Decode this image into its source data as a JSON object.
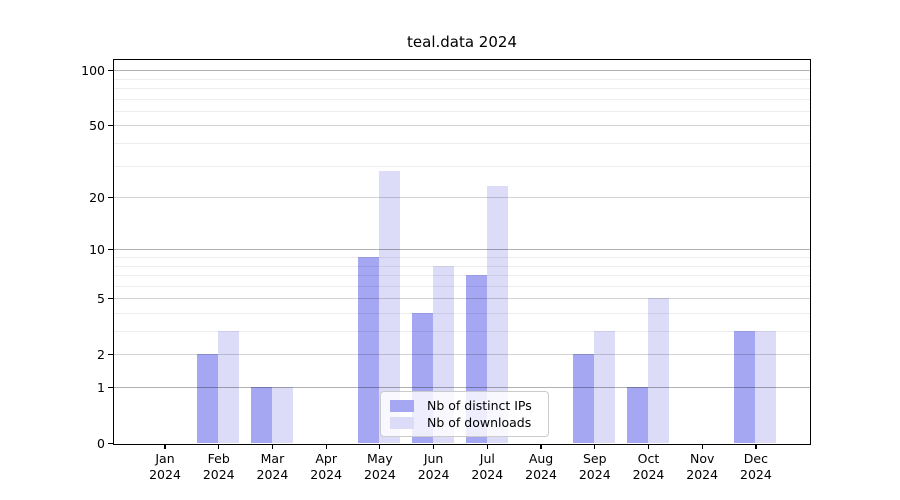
{
  "chart_data": {
    "type": "bar",
    "title": "teal.data 2024",
    "categories": [
      "Jan\n2024",
      "Feb\n2024",
      "Mar\n2024",
      "Apr\n2024",
      "May\n2024",
      "Jun\n2024",
      "Jul\n2024",
      "Aug\n2024",
      "Sep\n2024",
      "Oct\n2024",
      "Nov\n2024",
      "Dec\n2024"
    ],
    "series": [
      {
        "name": "Nb of distinct IPs",
        "color": "#a5a7f2",
        "values": [
          0,
          2,
          1,
          0,
          9,
          4,
          7,
          0,
          2,
          1,
          0,
          3
        ]
      },
      {
        "name": "Nb of downloads",
        "color": "#dcdcf8",
        "values": [
          0,
          3,
          1,
          0,
          28,
          8,
          23,
          0,
          3,
          5,
          0,
          3
        ]
      }
    ],
    "xlabel": "",
    "ylabel": "",
    "yscale": "log1p",
    "ylim": [
      0,
      113
    ],
    "yticks": [
      0,
      1,
      2,
      5,
      10,
      20,
      50,
      100
    ],
    "yticks_minor": [
      3,
      4,
      6,
      7,
      8,
      9,
      30,
      40,
      60,
      70,
      80,
      90
    ],
    "grid": "on",
    "legend_position": "lower center"
  }
}
